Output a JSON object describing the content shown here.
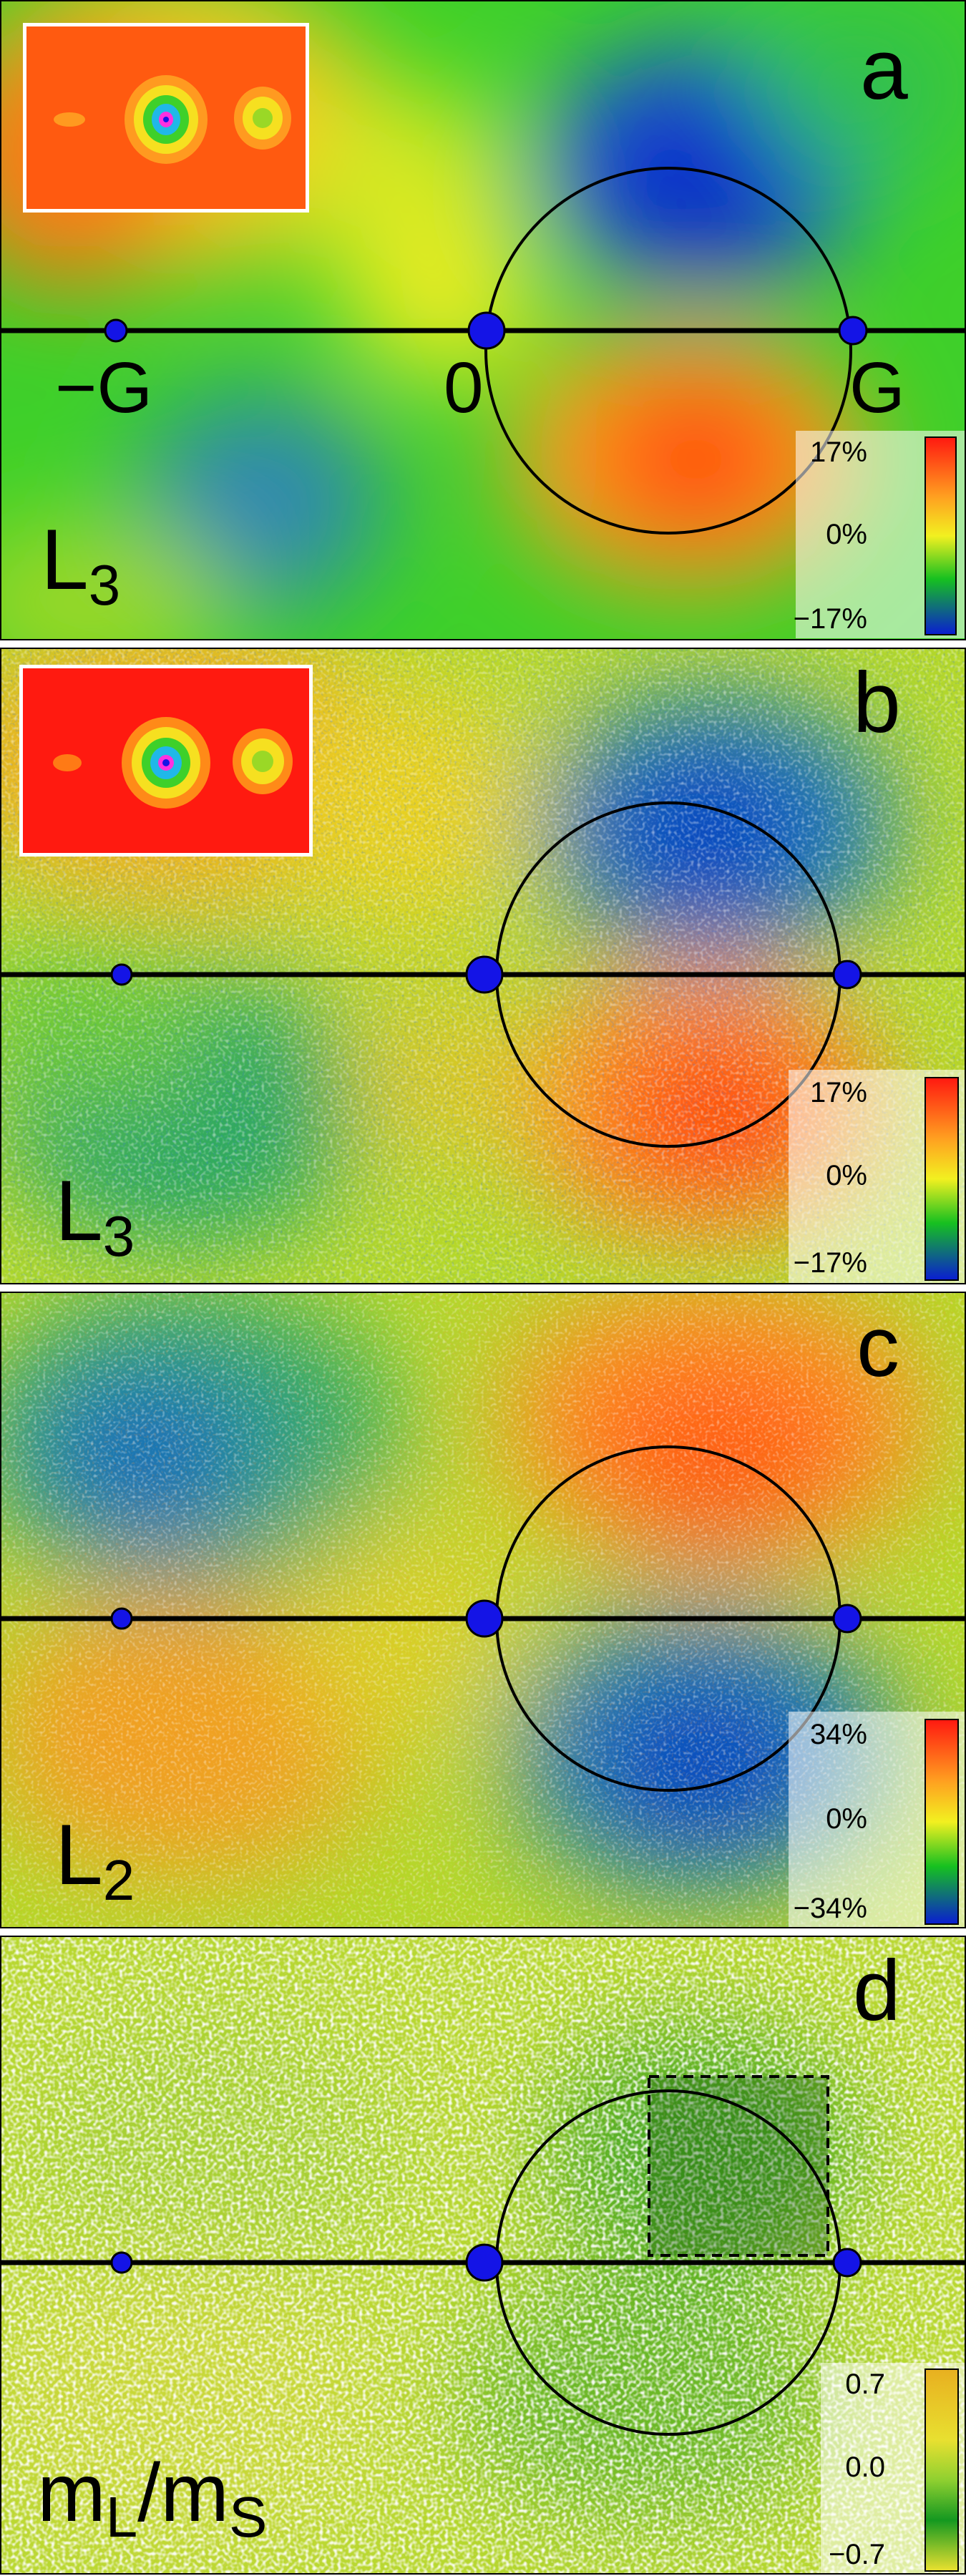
{
  "figure": {
    "panels": [
      {
        "letter": "a",
        "element": "L",
        "element_sub": "3",
        "axis_labels": [
          "−G",
          "0",
          "G"
        ],
        "colorbar": {
          "max": "17%",
          "mid": "0%",
          "min": "−17%",
          "scheme": "rainbow"
        },
        "has_inset": true,
        "texture": "smooth"
      },
      {
        "letter": "b",
        "element": "L",
        "element_sub": "3",
        "colorbar": {
          "max": "17%",
          "mid": "0%",
          "min": "−17%",
          "scheme": "rainbow"
        },
        "has_inset": true,
        "texture": "noisy"
      },
      {
        "letter": "c",
        "element": "L",
        "element_sub": "2",
        "colorbar": {
          "max": "34%",
          "mid": "0%",
          "min": "−34%",
          "scheme": "rainbow"
        },
        "has_inset": false,
        "texture": "noisy",
        "sign": "inverted"
      },
      {
        "letter": "d",
        "element": "m",
        "element_sub": "L",
        "element_rest": "/m",
        "element_sub2": "S",
        "colorbar": {
          "max": "0.7",
          "mid": "0.0",
          "min": "−0.7",
          "scheme": "yellow-green"
        },
        "has_inset": false,
        "texture": "sparse",
        "dashed_region": true
      }
    ],
    "colors": {
      "blue": "#0a1fd0",
      "green": "#16c020",
      "yellow": "#f2f020",
      "orange": "#ffa020",
      "red": "#ff2a10",
      "dot": "#1414e6"
    }
  }
}
